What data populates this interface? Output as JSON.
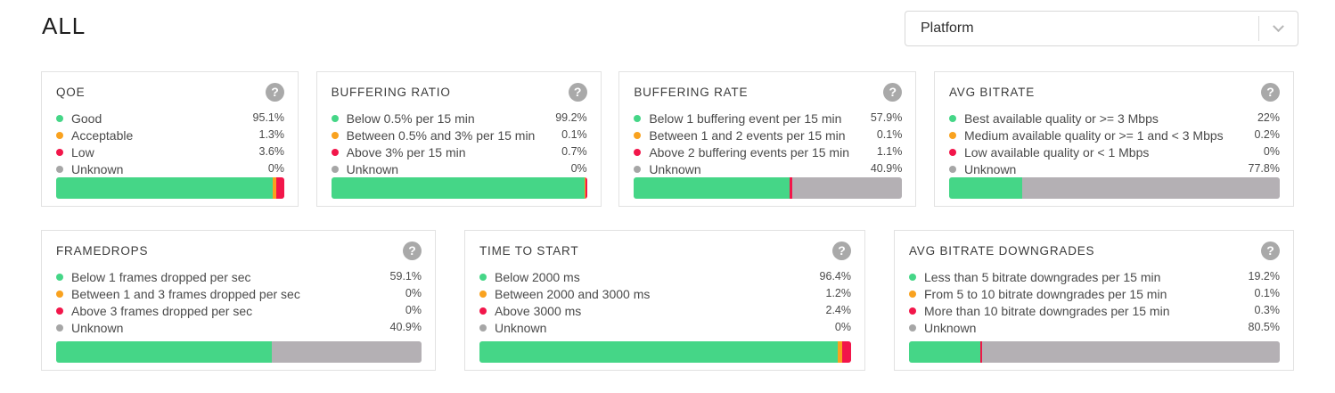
{
  "page": {
    "title": "ALL"
  },
  "filter": {
    "label": "Platform"
  },
  "icons": {
    "help_glyph": "?"
  },
  "colors": {
    "good": "#45d687",
    "acceptable": "#f9a21f",
    "low": "#f2164a",
    "unknown_bar": "#b4b0b4",
    "unknown_dot": "#a6a6a6",
    "help_icon": "#a9a9a9"
  },
  "rows": [
    {
      "cards": [
        {
          "title": "QOE",
          "legend": [
            {
              "status": "good",
              "label": "Good",
              "value": "95.1%",
              "pct": 95.1
            },
            {
              "status": "acceptable",
              "label": "Acceptable",
              "value": "1.3%",
              "pct": 1.3
            },
            {
              "status": "low",
              "label": "Low",
              "value": "3.6%",
              "pct": 3.6
            },
            {
              "status": "unknown",
              "label": "Unknown",
              "value": "0%",
              "pct": 0
            }
          ]
        },
        {
          "title": "BUFFERING RATIO",
          "legend": [
            {
              "status": "good",
              "label": "Below 0.5% per 15 min",
              "value": "99.2%",
              "pct": 99.2
            },
            {
              "status": "acceptable",
              "label": "Between 0.5% and 3% per 15 min",
              "value": "0.1%",
              "pct": 0.1
            },
            {
              "status": "low",
              "label": "Above 3% per 15 min",
              "value": "0.7%",
              "pct": 0.7
            },
            {
              "status": "unknown",
              "label": "Unknown",
              "value": "0%",
              "pct": 0
            }
          ]
        },
        {
          "title": "BUFFERING RATE",
          "legend": [
            {
              "status": "good",
              "label": "Below 1 buffering event per 15 min",
              "value": "57.9%",
              "pct": 57.9
            },
            {
              "status": "acceptable",
              "label": "Between 1 and 2 events per 15 min",
              "value": "0.1%",
              "pct": 0.1
            },
            {
              "status": "low",
              "label": "Above 2 buffering events per 15 min",
              "value": "1.1%",
              "pct": 1.1
            },
            {
              "status": "unknown",
              "label": "Unknown",
              "value": "40.9%",
              "pct": 40.9
            }
          ]
        },
        {
          "title": "AVG BITRATE",
          "legend": [
            {
              "status": "good",
              "label": "Best available quality or >= 3 Mbps",
              "value": "22%",
              "pct": 22
            },
            {
              "status": "acceptable",
              "label": "Medium available quality or >= 1 and < 3 Mbps",
              "value": "0.2%",
              "pct": 0.2
            },
            {
              "status": "low",
              "label": "Low available quality or < 1 Mbps",
              "value": "0%",
              "pct": 0
            },
            {
              "status": "unknown",
              "label": "Unknown",
              "value": "77.8%",
              "pct": 77.8
            }
          ]
        }
      ]
    },
    {
      "cards": [
        {
          "title": "FRAMEDROPS",
          "legend": [
            {
              "status": "good",
              "label": "Below 1 frames dropped per sec",
              "value": "59.1%",
              "pct": 59.1
            },
            {
              "status": "acceptable",
              "label": "Between 1 and 3 frames dropped per sec",
              "value": "0%",
              "pct": 0
            },
            {
              "status": "low",
              "label": "Above 3 frames dropped per sec",
              "value": "0%",
              "pct": 0
            },
            {
              "status": "unknown",
              "label": "Unknown",
              "value": "40.9%",
              "pct": 40.9
            }
          ]
        },
        {
          "title": "TIME TO START",
          "legend": [
            {
              "status": "good",
              "label": "Below 2000 ms",
              "value": "96.4%",
              "pct": 96.4
            },
            {
              "status": "acceptable",
              "label": "Between 2000 and 3000 ms",
              "value": "1.2%",
              "pct": 1.2
            },
            {
              "status": "low",
              "label": "Above 3000 ms",
              "value": "2.4%",
              "pct": 2.4
            },
            {
              "status": "unknown",
              "label": "Unknown",
              "value": "0%",
              "pct": 0
            }
          ]
        },
        {
          "title": "AVG BITRATE DOWNGRADES",
          "legend": [
            {
              "status": "good",
              "label": "Less than 5 bitrate downgrades per 15 min",
              "value": "19.2%",
              "pct": 19.2
            },
            {
              "status": "acceptable",
              "label": "From 5 to 10 bitrate downgrades per 15 min",
              "value": "0.1%",
              "pct": 0.1
            },
            {
              "status": "low",
              "label": "More than 10 bitrate downgrades per 15 min",
              "value": "0.3%",
              "pct": 0.3
            },
            {
              "status": "unknown",
              "label": "Unknown",
              "value": "80.5%",
              "pct": 80.5
            }
          ]
        }
      ]
    }
  ]
}
